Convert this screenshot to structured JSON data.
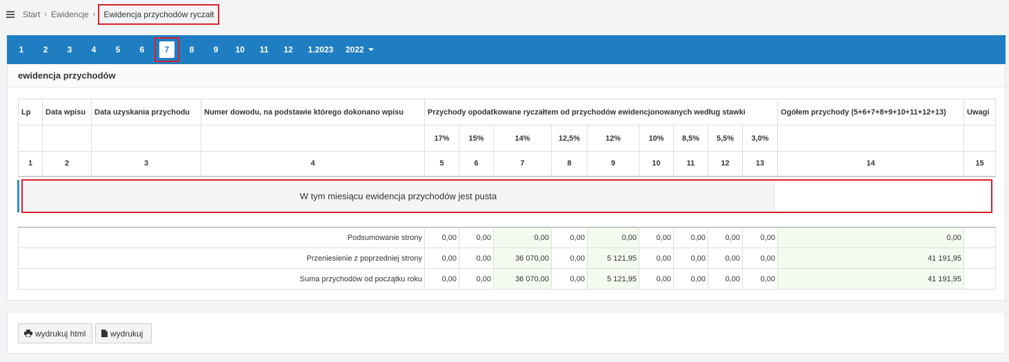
{
  "breadcrumb": {
    "items": [
      "Start",
      "Ewidencje"
    ],
    "current": "Ewidencja przychodów ryczałt"
  },
  "months": [
    "1",
    "2",
    "3",
    "4",
    "5",
    "6",
    "7",
    "8",
    "9",
    "10",
    "11",
    "12",
    "1.2023"
  ],
  "active_month": "7",
  "year": "2022",
  "panel_title": "ewidencja przychodów",
  "table": {
    "headers": {
      "lp": "Lp",
      "data_wpisu": "Data wpisu",
      "data_uzyskania": "Data uzyskania przychodu",
      "numer_dowodu": "Numer dowodu, na podstawie którego dokonano wpisu",
      "przychody": "Przychody opodatkowane ryczałtem od przychodów ewidencjonowanych według stawki",
      "ogolem": "Ogółem przychody (5+6+7+8+9+10+11+12+13)",
      "uwagi": "Uwagi"
    },
    "rates": [
      "17%",
      "15%",
      "14%",
      "12,5%",
      "12%",
      "10%",
      "8,5%",
      "5,5%",
      "3,0%"
    ],
    "column_numbers": [
      "1",
      "2",
      "3",
      "4",
      "5",
      "6",
      "7",
      "8",
      "9",
      "10",
      "11",
      "12",
      "13",
      "14",
      "15"
    ],
    "empty_message": "W tym miesiącu ewidencja przychodów jest pusta"
  },
  "summary": [
    {
      "label": "Podsumowanie strony",
      "values": [
        "0,00",
        "0,00",
        "0,00",
        "0,00",
        "0,00",
        "0,00",
        "0,00",
        "0,00",
        "0,00"
      ],
      "total": "0,00"
    },
    {
      "label": "Przeniesienie z poprzedniej strony",
      "values": [
        "0,00",
        "0,00",
        "36 070,00",
        "0,00",
        "5 121,95",
        "0,00",
        "0,00",
        "0,00",
        "0,00"
      ],
      "total": "41 191,95"
    },
    {
      "label": "Suma przychodów od początku roku",
      "values": [
        "0,00",
        "0,00",
        "36 070,00",
        "0,00",
        "5 121,95",
        "0,00",
        "0,00",
        "0,00",
        "0,00"
      ],
      "total": "41 191,95"
    }
  ],
  "buttons": {
    "print_html": "wydrukuj html",
    "print": "wydrukuj"
  },
  "colors": {
    "nav_bg": "#1f7ec2",
    "highlight": "#d81f26",
    "sum_bg": "#f3faf0"
  }
}
